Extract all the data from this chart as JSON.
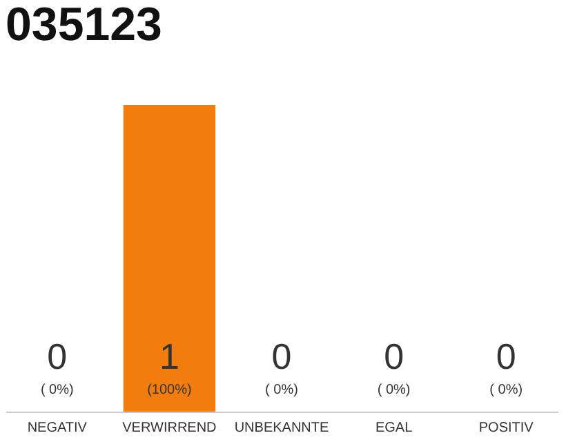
{
  "chart_data": {
    "type": "bar",
    "title": "035123",
    "categories": [
      "NEGATIV",
      "VERWIRREND",
      "UNBEKANNTE",
      "EGAL",
      "POSITIV"
    ],
    "values": [
      0,
      1,
      0,
      0,
      0
    ],
    "colors": [
      "#f07d0e",
      "#f07d0e",
      "#f07d0e",
      "#f07d0e",
      "#f07d0e"
    ],
    "data_labels": true,
    "grid": false,
    "annotations": [
      "( 0%)",
      "(100%)",
      "( 0%)",
      "( 0%)",
      "( 0%)"
    ]
  }
}
